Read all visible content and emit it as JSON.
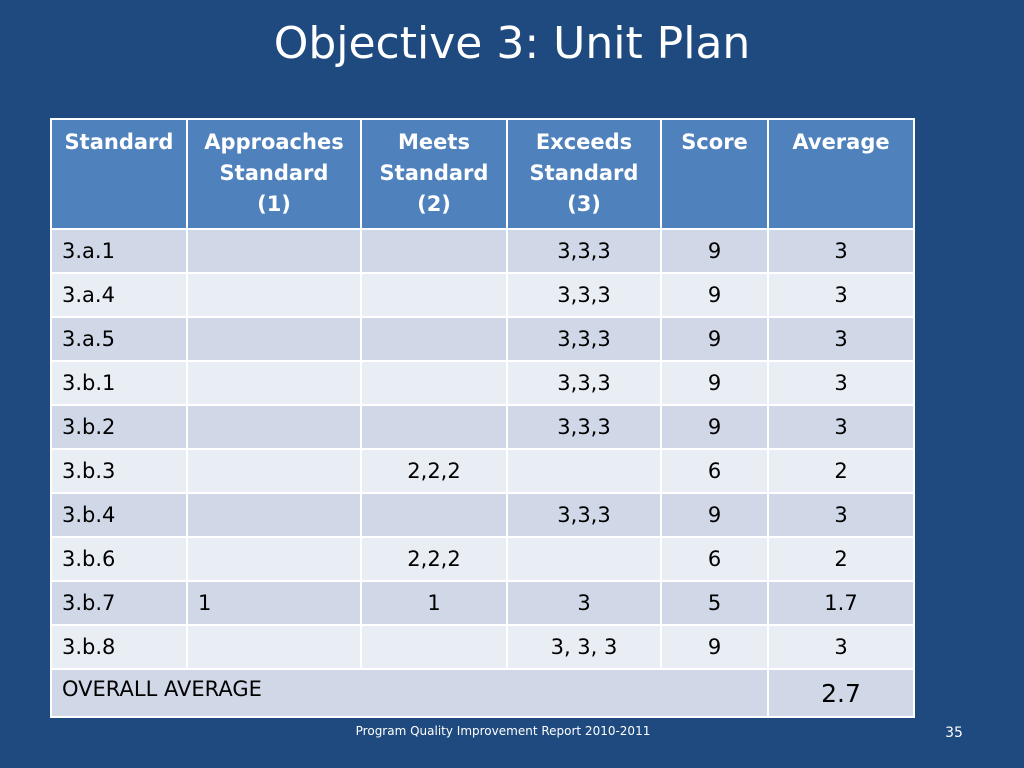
{
  "slide": {
    "title": "Objective 3: Unit Plan",
    "footer": "Program Quality Improvement Report 2010-2011",
    "page_number": "35"
  },
  "table": {
    "headers": [
      [
        "Standard"
      ],
      [
        "Approaches",
        "Standard",
        "(1)"
      ],
      [
        "Meets",
        "Standard",
        "(2)"
      ],
      [
        "Exceeds",
        "Standard",
        "(3)"
      ],
      [
        "Score"
      ],
      [
        "Average"
      ]
    ],
    "rows": [
      {
        "standard": "3.a.1",
        "approaches": "",
        "meets": "",
        "exceeds": "3,3,3",
        "score": "9",
        "average": "3"
      },
      {
        "standard": "3.a.4",
        "approaches": "",
        "meets": "",
        "exceeds": "3,3,3",
        "score": "9",
        "average": "3"
      },
      {
        "standard": "3.a.5",
        "approaches": "",
        "meets": "",
        "exceeds": "3,3,3",
        "score": "9",
        "average": "3"
      },
      {
        "standard": "3.b.1",
        "approaches": "",
        "meets": "",
        "exceeds": "3,3,3",
        "score": "9",
        "average": "3"
      },
      {
        "standard": "3.b.2",
        "approaches": "",
        "meets": "",
        "exceeds": "3,3,3",
        "score": "9",
        "average": "3"
      },
      {
        "standard": "3.b.3",
        "approaches": "",
        "meets": "2,2,2",
        "exceeds": "",
        "score": "6",
        "average": "2"
      },
      {
        "standard": "3.b.4",
        "approaches": "",
        "meets": "",
        "exceeds": "3,3,3",
        "score": "9",
        "average": "3"
      },
      {
        "standard": "3.b.6",
        "approaches": "",
        "meets": "2,2,2",
        "exceeds": "",
        "score": "6",
        "average": "2"
      },
      {
        "standard": "3.b.7",
        "approaches": "1",
        "meets": "1",
        "exceeds": "3",
        "score": "5",
        "average": "1.7"
      },
      {
        "standard": "3.b.8",
        "approaches": "",
        "meets": "",
        "exceeds": "3, 3, 3",
        "score": "9",
        "average": "3"
      }
    ],
    "overall_label": "OVERALL AVERAGE",
    "overall_value": "2.7"
  }
}
